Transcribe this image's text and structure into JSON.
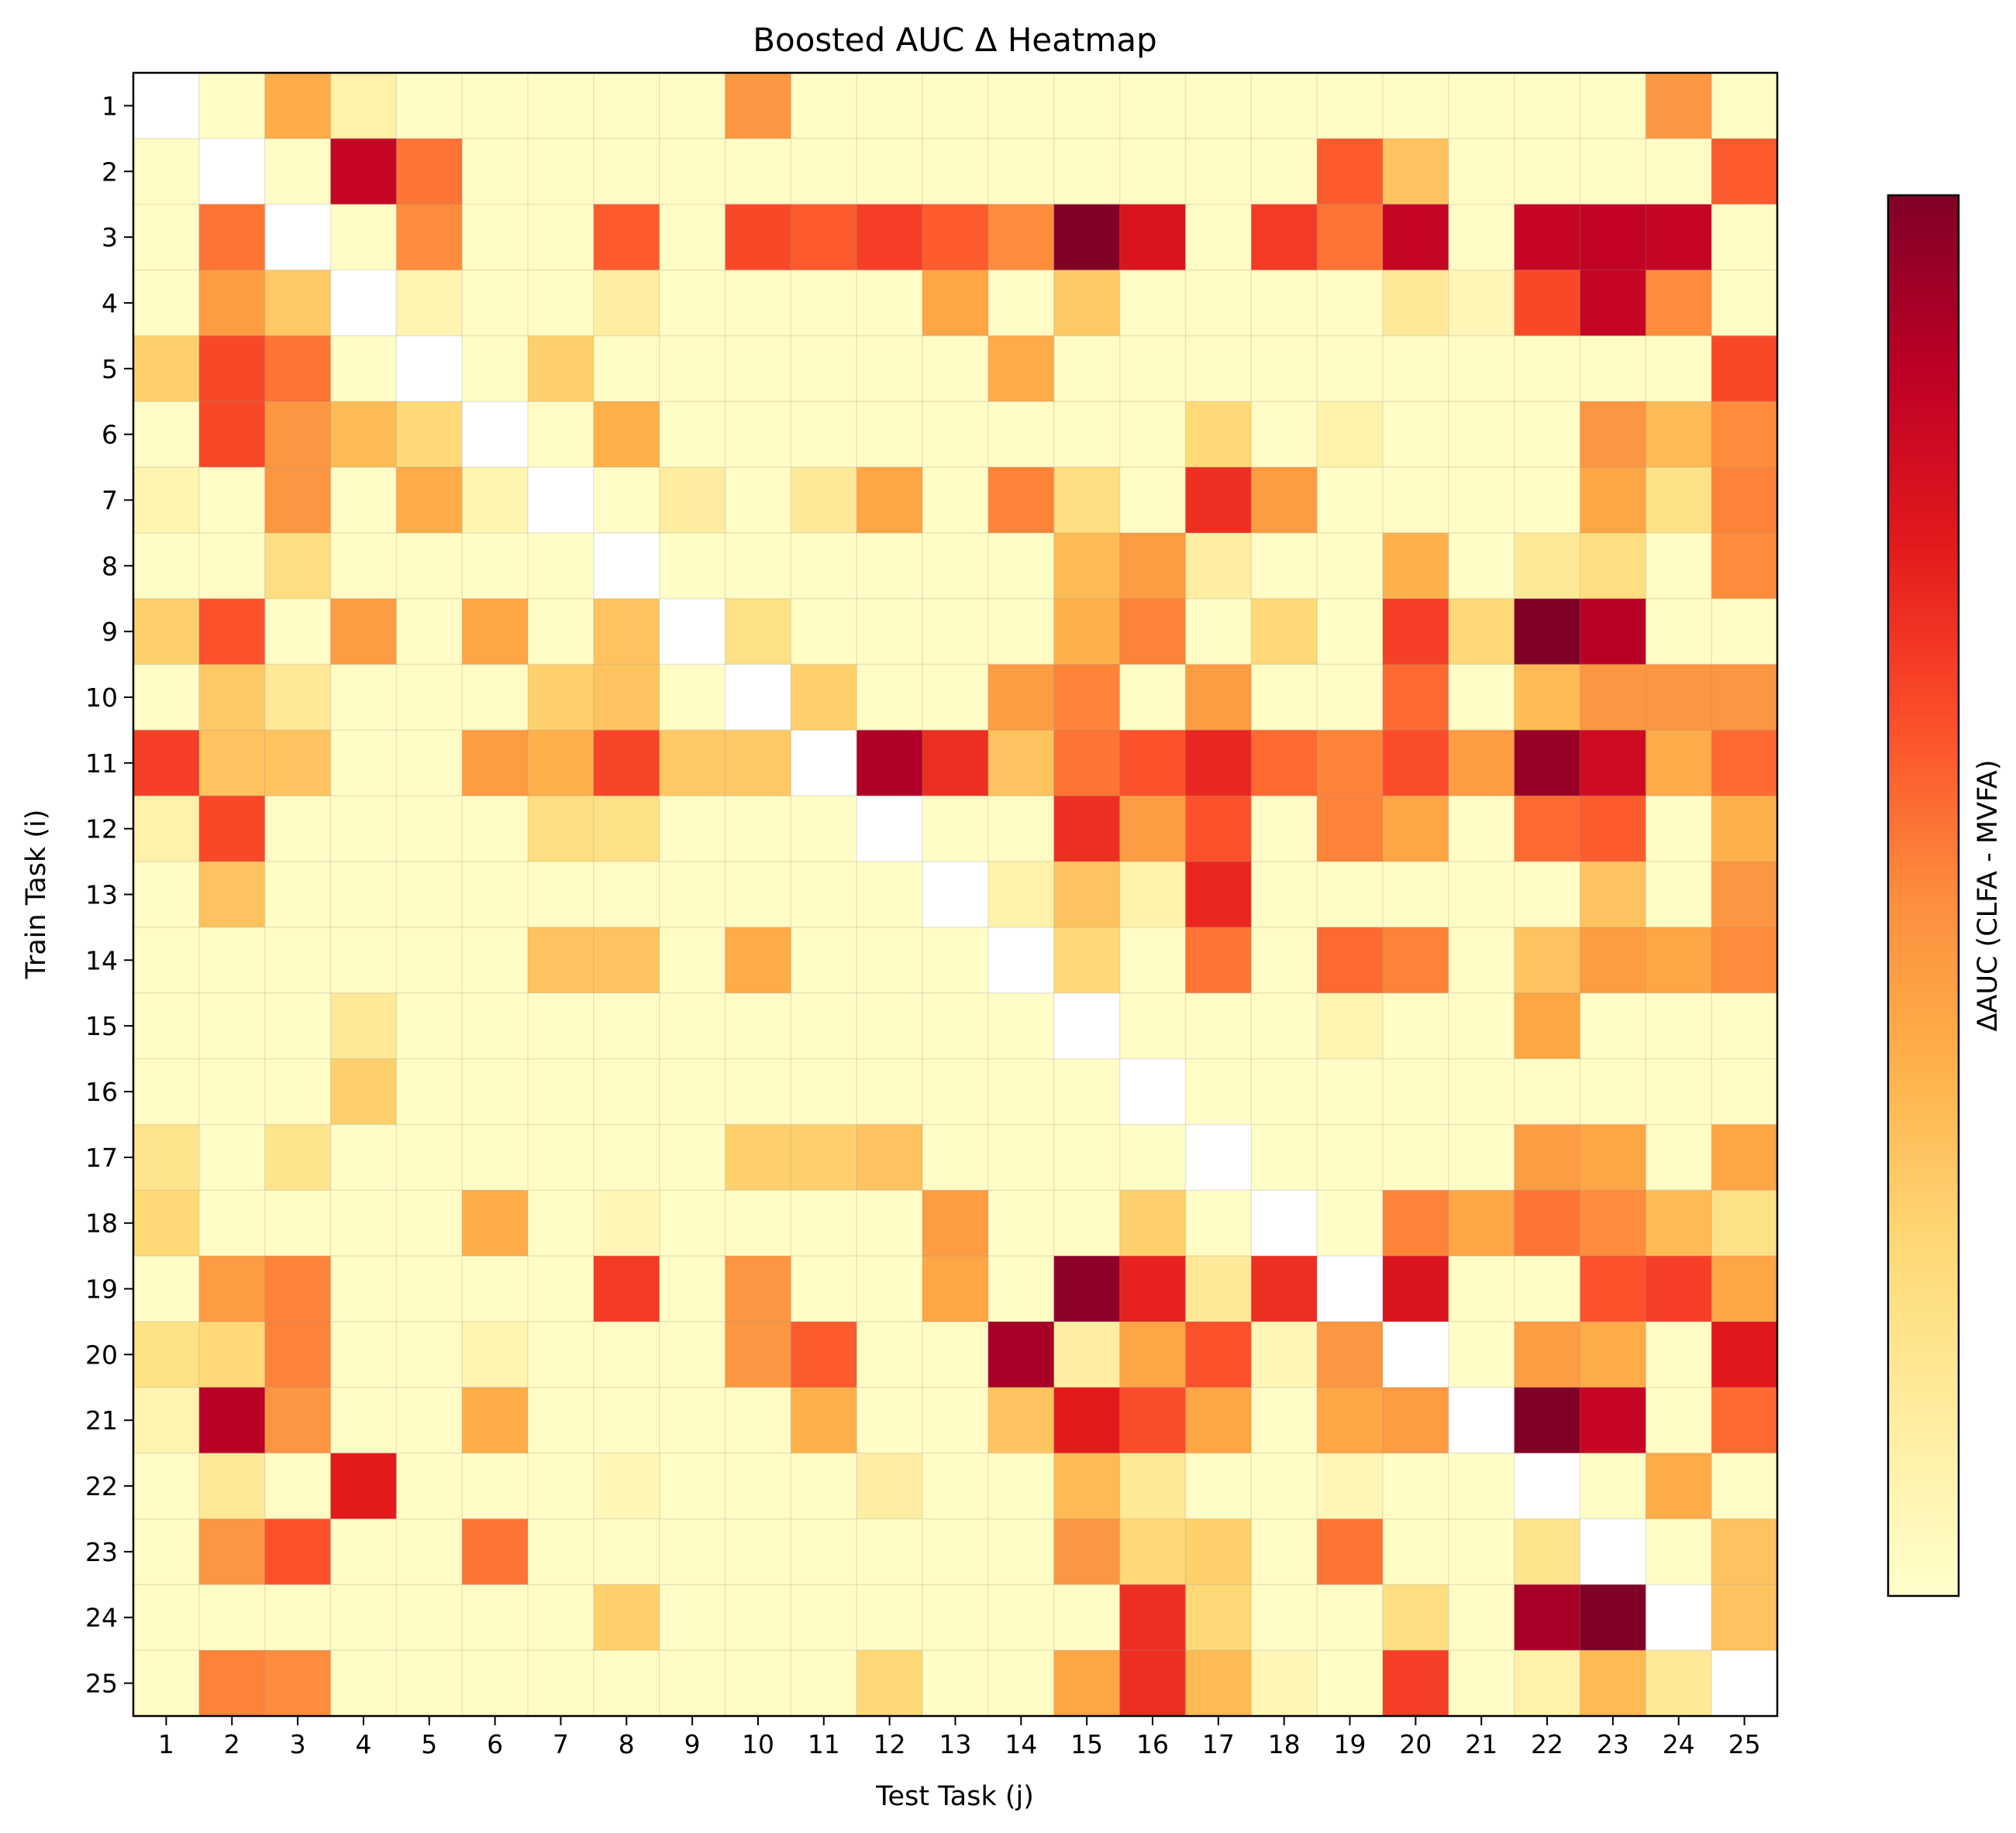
{
  "chart_data": {
    "type": "heatmap",
    "title": "Boosted AUC Δ Heatmap",
    "xlabel": "Test Task (j)",
    "ylabel": "Train Task (i)",
    "colorbar_label": "ΔAUC (CLFA - MVFA)",
    "x_categories": [
      "1",
      "2",
      "3",
      "4",
      "5",
      "6",
      "7",
      "8",
      "9",
      "10",
      "11",
      "12",
      "13",
      "14",
      "15",
      "16",
      "17",
      "18",
      "19",
      "20",
      "21",
      "22",
      "23",
      "24",
      "25"
    ],
    "y_categories": [
      "1",
      "2",
      "3",
      "4",
      "5",
      "6",
      "7",
      "8",
      "9",
      "10",
      "11",
      "12",
      "13",
      "14",
      "15",
      "16",
      "17",
      "18",
      "19",
      "20",
      "21",
      "22",
      "23",
      "24",
      "25"
    ],
    "colormap": "YlOrRd",
    "value_range": [
      0,
      1
    ],
    "diagonal": "blank",
    "grid": true,
    "legend": "colorbar-right",
    "values": [
      [
        null,
        0.02,
        0.4,
        0.1,
        0.02,
        0.02,
        0.02,
        0.02,
        0.02,
        0.47,
        0.02,
        0.02,
        0.02,
        0.02,
        0.02,
        0.02,
        0.02,
        0.02,
        0.02,
        0.02,
        0.02,
        0.02,
        0.02,
        0.47,
        0.02
      ],
      [
        0.02,
        null,
        0.02,
        0.85,
        0.55,
        0.02,
        0.02,
        0.02,
        0.02,
        0.02,
        0.02,
        0.02,
        0.02,
        0.02,
        0.02,
        0.02,
        0.02,
        0.02,
        0.6,
        0.32,
        0.02,
        0.02,
        0.02,
        0.02,
        0.6
      ],
      [
        0.02,
        0.55,
        null,
        0.02,
        0.5,
        0.02,
        0.02,
        0.6,
        0.02,
        0.64,
        0.6,
        0.66,
        0.6,
        0.5,
        1.0,
        0.78,
        0.02,
        0.67,
        0.55,
        0.85,
        0.02,
        0.85,
        0.86,
        0.85,
        0.02
      ],
      [
        0.02,
        0.45,
        0.3,
        null,
        0.08,
        0.02,
        0.02,
        0.12,
        0.02,
        0.02,
        0.02,
        0.02,
        0.42,
        0.02,
        0.3,
        0.02,
        0.02,
        0.02,
        0.02,
        0.15,
        0.06,
        0.64,
        0.85,
        0.5,
        0.02
      ],
      [
        0.28,
        0.64,
        0.55,
        0.02,
        null,
        0.02,
        0.28,
        0.02,
        0.02,
        0.02,
        0.02,
        0.02,
        0.02,
        0.4,
        0.02,
        0.02,
        0.02,
        0.02,
        0.02,
        0.02,
        0.02,
        0.02,
        0.02,
        0.02,
        0.64
      ],
      [
        0.02,
        0.64,
        0.47,
        0.35,
        0.25,
        null,
        0.02,
        0.38,
        0.02,
        0.02,
        0.02,
        0.02,
        0.02,
        0.02,
        0.02,
        0.02,
        0.25,
        0.02,
        0.1,
        0.02,
        0.02,
        0.02,
        0.47,
        0.35,
        0.5
      ],
      [
        0.08,
        0.02,
        0.47,
        0.02,
        0.4,
        0.08,
        null,
        0.02,
        0.13,
        0.02,
        0.15,
        0.42,
        0.02,
        0.52,
        0.22,
        0.02,
        0.7,
        0.45,
        0.02,
        0.02,
        0.02,
        0.02,
        0.42,
        0.2,
        0.52
      ],
      [
        0.02,
        0.02,
        0.22,
        0.02,
        0.02,
        0.02,
        0.02,
        null,
        0.02,
        0.02,
        0.02,
        0.02,
        0.02,
        0.02,
        0.35,
        0.45,
        0.12,
        0.02,
        0.02,
        0.38,
        0.02,
        0.15,
        0.22,
        0.02,
        0.5
      ],
      [
        0.28,
        0.62,
        0.02,
        0.45,
        0.02,
        0.42,
        0.02,
        0.32,
        null,
        0.2,
        0.02,
        0.02,
        0.02,
        0.02,
        0.38,
        0.52,
        0.02,
        0.25,
        0.02,
        0.66,
        0.25,
        1.0,
        0.88,
        0.02,
        0.02
      ],
      [
        0.02,
        0.3,
        0.15,
        0.02,
        0.02,
        0.02,
        0.28,
        0.32,
        0.02,
        null,
        0.28,
        0.02,
        0.02,
        0.45,
        0.52,
        0.02,
        0.45,
        0.02,
        0.02,
        0.57,
        0.02,
        0.35,
        0.47,
        0.47,
        0.47
      ],
      [
        0.66,
        0.32,
        0.32,
        0.02,
        0.02,
        0.45,
        0.38,
        0.65,
        0.3,
        0.3,
        null,
        0.9,
        0.7,
        0.32,
        0.55,
        0.62,
        0.72,
        0.57,
        0.52,
        0.63,
        0.45,
        0.95,
        0.82,
        0.4,
        0.57
      ],
      [
        0.1,
        0.64,
        0.02,
        0.02,
        0.02,
        0.02,
        0.22,
        0.2,
        0.02,
        0.02,
        0.02,
        null,
        0.02,
        0.02,
        0.7,
        0.45,
        0.62,
        0.02,
        0.52,
        0.42,
        0.02,
        0.57,
        0.6,
        0.02,
        0.38
      ],
      [
        0.02,
        0.32,
        0.02,
        0.02,
        0.02,
        0.02,
        0.02,
        0.02,
        0.02,
        0.02,
        0.02,
        0.02,
        null,
        0.1,
        0.32,
        0.1,
        0.72,
        0.02,
        0.02,
        0.02,
        0.02,
        0.02,
        0.32,
        0.02,
        0.47
      ],
      [
        0.02,
        0.02,
        0.02,
        0.02,
        0.02,
        0.02,
        0.32,
        0.32,
        0.02,
        0.4,
        0.02,
        0.02,
        0.02,
        null,
        0.25,
        0.02,
        0.55,
        0.02,
        0.57,
        0.52,
        0.02,
        0.32,
        0.45,
        0.42,
        0.5
      ],
      [
        0.02,
        0.02,
        0.02,
        0.15,
        0.02,
        0.02,
        0.02,
        0.02,
        0.02,
        0.02,
        0.02,
        0.02,
        0.02,
        0.02,
        null,
        0.02,
        0.02,
        0.02,
        0.08,
        0.02,
        0.02,
        0.42,
        0.02,
        0.02,
        0.02
      ],
      [
        0.02,
        0.02,
        0.02,
        0.28,
        0.02,
        0.02,
        0.02,
        0.02,
        0.02,
        0.02,
        0.02,
        0.02,
        0.02,
        0.02,
        0.02,
        null,
        0.02,
        0.02,
        0.02,
        0.02,
        0.02,
        0.02,
        0.02,
        0.02,
        0.02
      ],
      [
        0.18,
        0.02,
        0.18,
        0.02,
        0.02,
        0.02,
        0.02,
        0.02,
        0.02,
        0.28,
        0.28,
        0.32,
        0.02,
        0.02,
        0.02,
        0.02,
        null,
        0.02,
        0.02,
        0.02,
        0.02,
        0.45,
        0.42,
        0.02,
        0.42
      ],
      [
        0.25,
        0.02,
        0.02,
        0.02,
        0.02,
        0.4,
        0.02,
        0.06,
        0.02,
        0.02,
        0.02,
        0.02,
        0.45,
        0.02,
        0.02,
        0.28,
        0.02,
        null,
        0.02,
        0.52,
        0.42,
        0.55,
        0.5,
        0.35,
        0.2
      ],
      [
        0.02,
        0.45,
        0.52,
        0.02,
        0.02,
        0.02,
        0.02,
        0.67,
        0.02,
        0.47,
        0.02,
        0.02,
        0.42,
        0.02,
        0.97,
        0.73,
        0.15,
        0.7,
        null,
        0.78,
        0.02,
        0.02,
        0.62,
        0.66,
        0.42
      ],
      [
        0.2,
        0.25,
        0.52,
        0.02,
        0.02,
        0.08,
        0.02,
        0.02,
        0.02,
        0.47,
        0.6,
        0.02,
        0.02,
        0.92,
        0.12,
        0.42,
        0.62,
        0.06,
        0.47,
        null,
        0.02,
        0.45,
        0.4,
        0.02,
        0.76
      ],
      [
        0.08,
        0.88,
        0.47,
        0.02,
        0.02,
        0.4,
        0.02,
        0.02,
        0.02,
        0.02,
        0.38,
        0.02,
        0.02,
        0.32,
        0.75,
        0.63,
        0.42,
        0.02,
        0.42,
        0.45,
        null,
        1.0,
        0.85,
        0.02,
        0.57
      ],
      [
        0.02,
        0.15,
        0.02,
        0.75,
        0.02,
        0.02,
        0.02,
        0.06,
        0.02,
        0.02,
        0.02,
        0.12,
        0.02,
        0.02,
        0.35,
        0.15,
        0.02,
        0.02,
        0.06,
        0.02,
        0.02,
        null,
        0.02,
        0.4,
        0.02
      ],
      [
        0.02,
        0.47,
        0.62,
        0.02,
        0.02,
        0.55,
        0.02,
        0.02,
        0.02,
        0.02,
        0.02,
        0.02,
        0.02,
        0.02,
        0.47,
        0.25,
        0.28,
        0.02,
        0.55,
        0.02,
        0.02,
        0.18,
        null,
        0.02,
        0.32
      ],
      [
        0.02,
        0.02,
        0.02,
        0.02,
        0.02,
        0.02,
        0.02,
        0.28,
        0.02,
        0.02,
        0.02,
        0.02,
        0.02,
        0.02,
        0.02,
        0.7,
        0.25,
        0.02,
        0.02,
        0.22,
        0.02,
        0.92,
        1.0,
        null,
        0.32
      ],
      [
        0.02,
        0.52,
        0.5,
        0.02,
        0.02,
        0.02,
        0.02,
        0.02,
        0.02,
        0.02,
        0.02,
        0.25,
        0.02,
        0.02,
        0.42,
        0.7,
        0.35,
        0.06,
        0.02,
        0.66,
        0.02,
        0.1,
        0.35,
        0.15,
        null
      ]
    ]
  }
}
